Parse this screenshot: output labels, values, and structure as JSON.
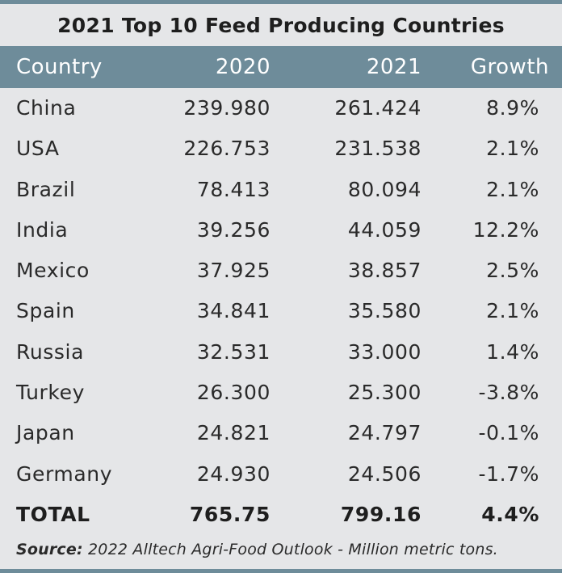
{
  "chart_data": {
    "type": "table",
    "title": "2021 Top 10 Feed Producing Countries",
    "columns": [
      "Country",
      "2020",
      "2021",
      "Growth"
    ],
    "rows": [
      {
        "country": "China",
        "v2020": "239.980",
        "v2021": "261.424",
        "growth": "8.9%"
      },
      {
        "country": "USA",
        "v2020": "226.753",
        "v2021": "231.538",
        "growth": "2.1%"
      },
      {
        "country": "Brazil",
        "v2020": "78.413",
        "v2021": "80.094",
        "growth": "2.1%"
      },
      {
        "country": "India",
        "v2020": "39.256",
        "v2021": "44.059",
        "growth": "12.2%"
      },
      {
        "country": "Mexico",
        "v2020": "37.925",
        "v2021": "38.857",
        "growth": "2.5%"
      },
      {
        "country": "Spain",
        "v2020": "34.841",
        "v2021": "35.580",
        "growth": "2.1%"
      },
      {
        "country": "Russia",
        "v2020": "32.531",
        "v2021": "33.000",
        "growth": "1.4%"
      },
      {
        "country": "Turkey",
        "v2020": "26.300",
        "v2021": "25.300",
        "growth": "-3.8%"
      },
      {
        "country": "Japan",
        "v2020": "24.821",
        "v2021": "24.797",
        "growth": "-0.1%"
      },
      {
        "country": "Germany",
        "v2020": "24.930",
        "v2021": "24.506",
        "growth": "-1.7%"
      }
    ],
    "total": {
      "country": "TOTAL",
      "v2020": "765.75",
      "v2021": "799.16",
      "growth": "4.4%"
    },
    "source_label": "Source:",
    "source_text": " 2022 Alltech Agri-Food Outlook - Million metric tons."
  },
  "colors": {
    "header_bg": "#6e8c9a",
    "page_bg": "#e5e6e8"
  }
}
